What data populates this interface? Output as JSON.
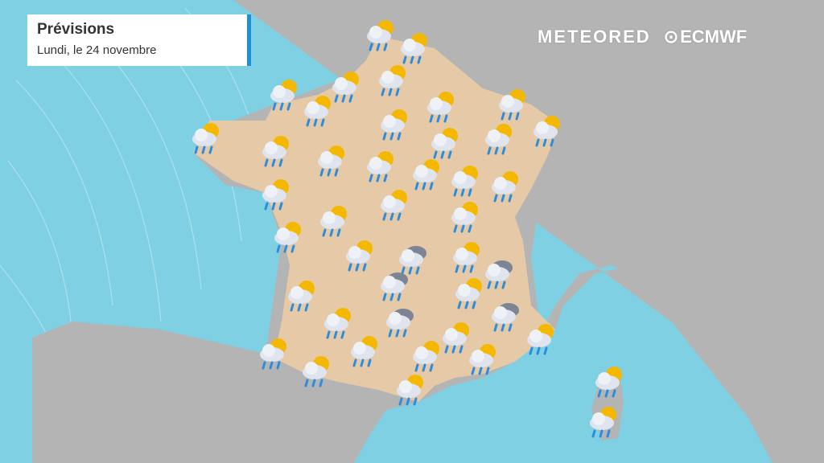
{
  "header": {
    "title": "Prévisions",
    "subtitle": "Lundi, le 24 novembre"
  },
  "logos": {
    "meteored": "METEORED",
    "ecmwf": "ECMWF"
  },
  "colors": {
    "sea": "#7fd0e3",
    "land": "#b4b4b4",
    "france": "#e6c9a6",
    "accent": "#1e8fd6",
    "sun": "#f5b800",
    "rain": "#2a8de0"
  },
  "icons": [
    "sun-cloud-rain",
    "sun-cloud-rain",
    "sun-cloud-rain",
    "sun-cloud-rain",
    "sun-cloud-rain",
    "sun-cloud-rain",
    "sun-cloud-rain",
    "sun-cloud-rain",
    "sun-cloud-rain",
    "sun-cloud-rain",
    "sun-cloud-rain",
    "sun-cloud-rain",
    "sun-cloud-rain",
    "sun-cloud-rain",
    "sun-cloud-rain",
    "sun-cloud-rain",
    "sun-cloud-rain",
    "sun-cloud-rain",
    "sun-cloud-rain",
    "sun-cloud-rain",
    "sun-cloud-rain",
    "sun-cloud-rain",
    "sun-cloud-rain",
    "sun-cloud-rain",
    "sun-cloud-rain",
    "sun-cloud-rain",
    "sun-cloud-rain",
    "sun-cloud-rain",
    "sun-cloud-rain",
    "sun-cloud-rain",
    "sun-cloud-rain",
    "sun-cloud-rain",
    "sun-cloud-rain",
    "sun-cloud-rain",
    "sun-cloud-rain",
    "sun-cloud-rain",
    "sun-cloud-rain",
    "sun-cloud-rain",
    "sun-cloud-rain",
    "cloud-rain",
    "cloud-rain",
    "cloud-rain",
    "cloud-rain",
    "cloud-rain"
  ]
}
